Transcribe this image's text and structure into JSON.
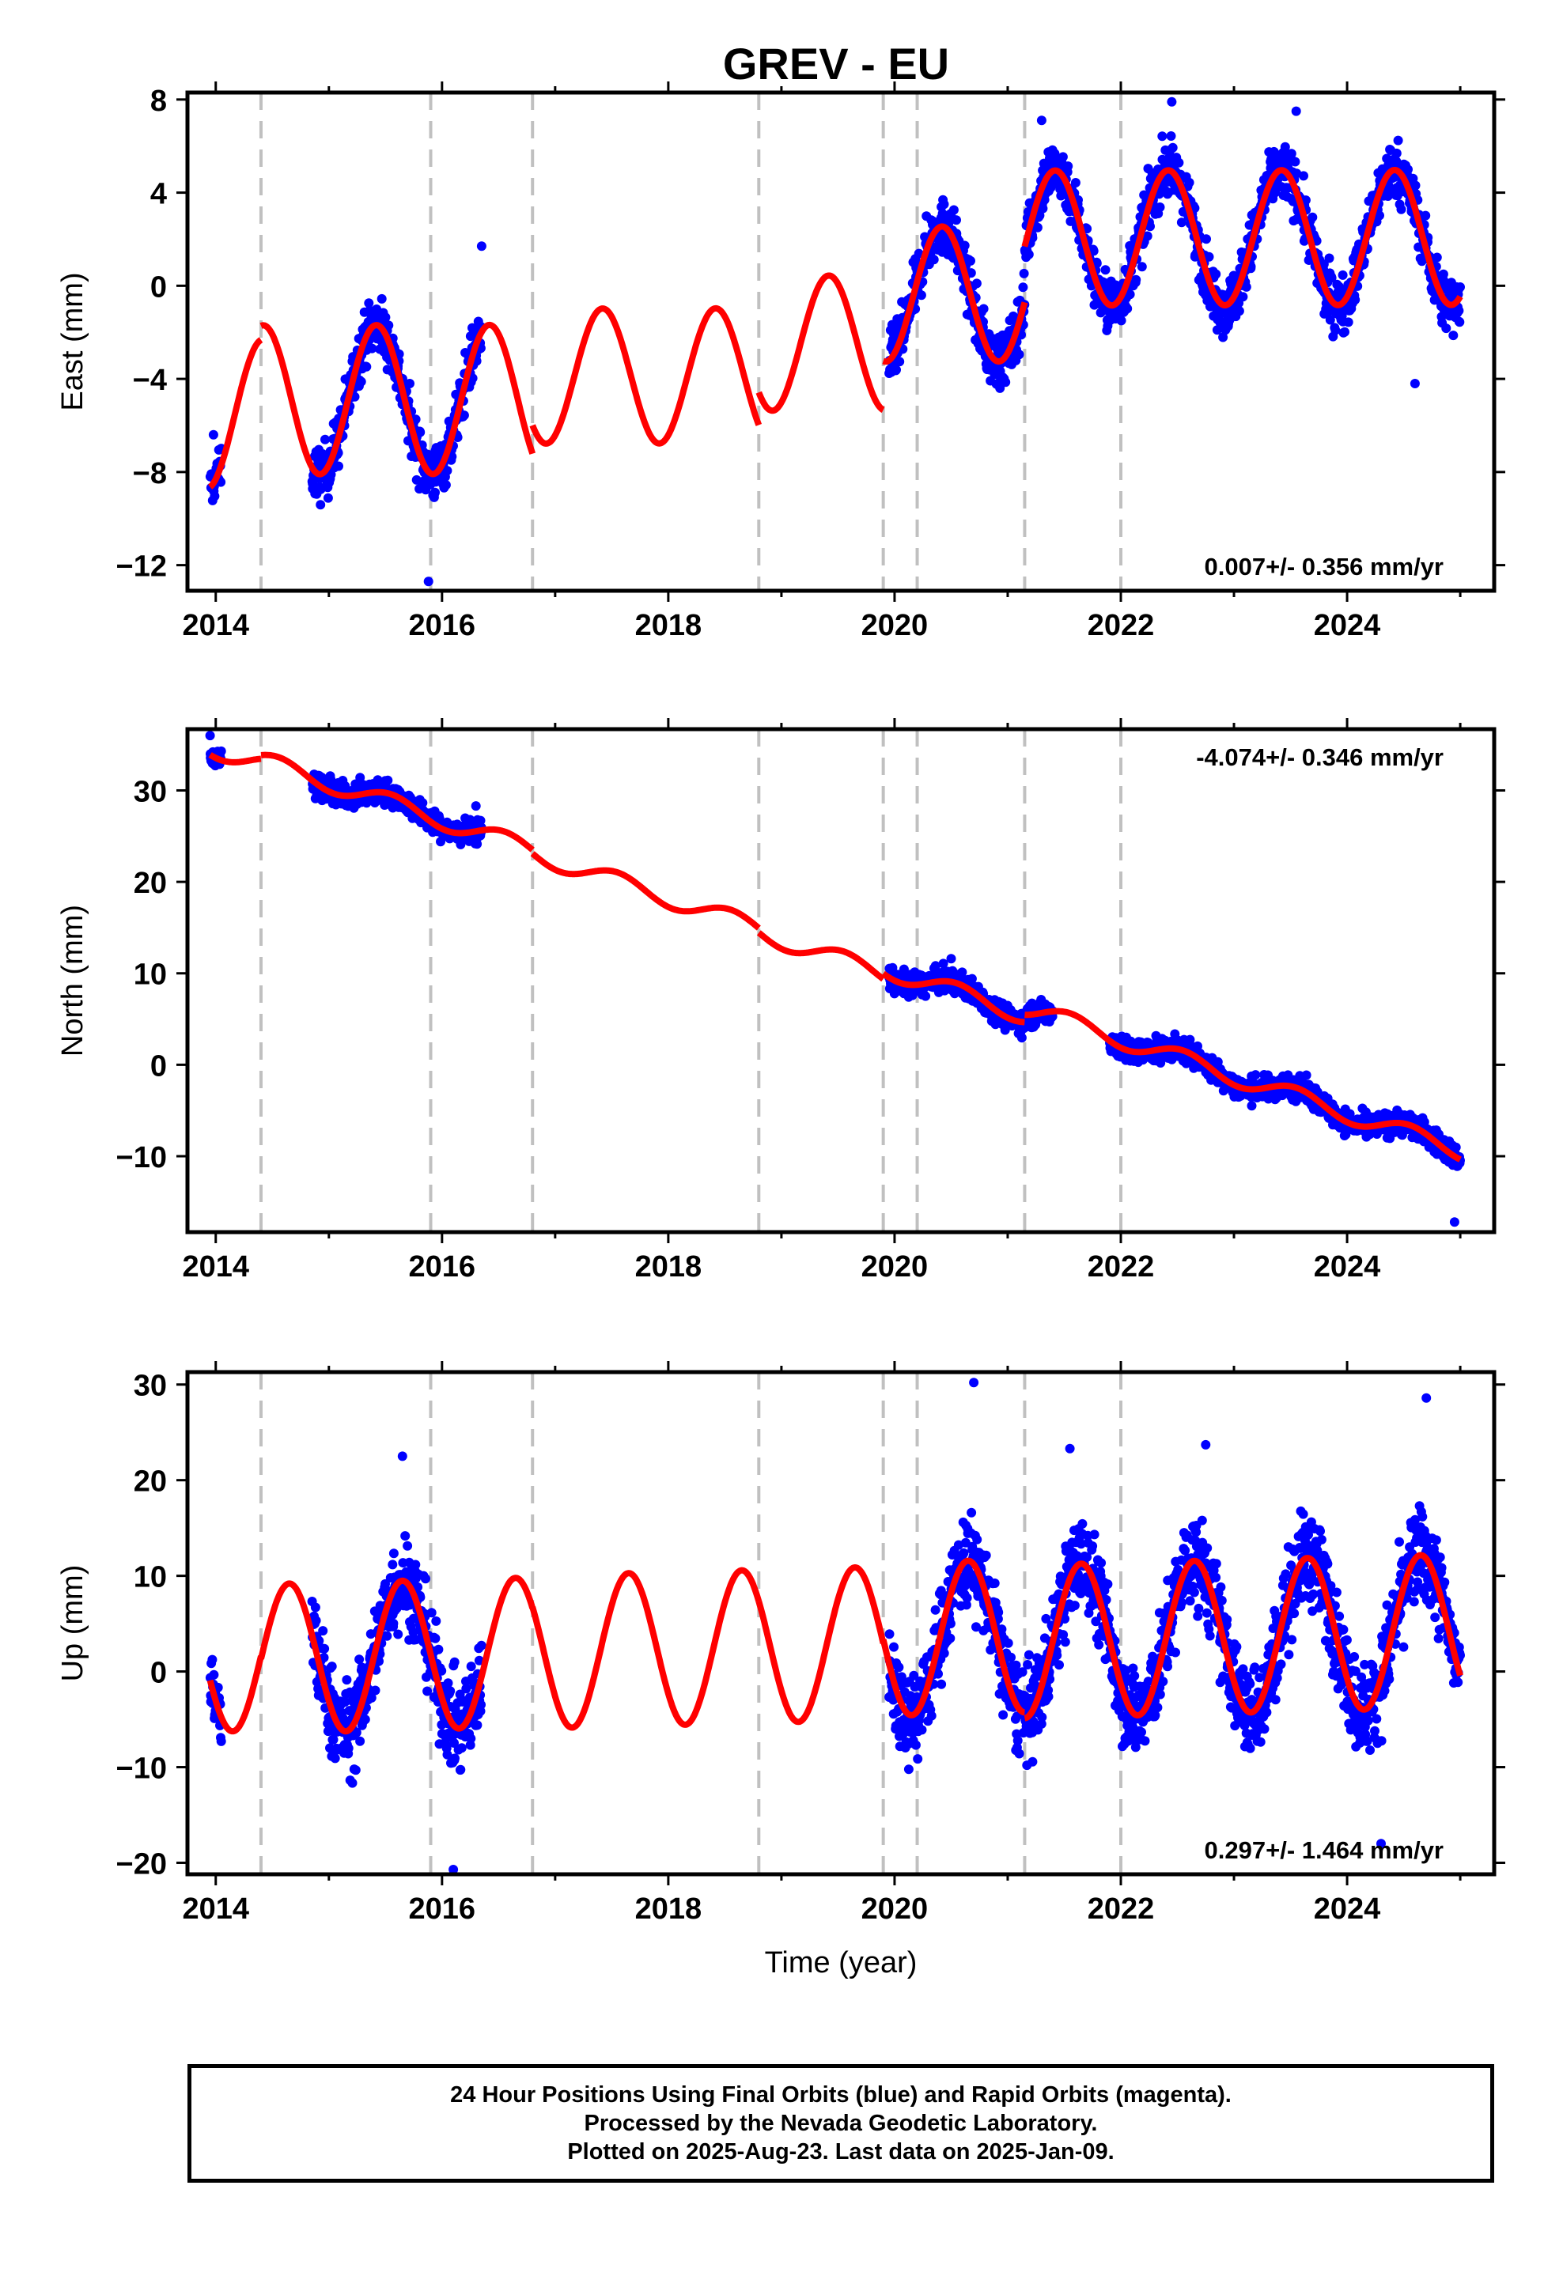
{
  "title": "GREV - EU",
  "colors": {
    "data_points": "#0000ff",
    "model_curve": "#ff0000",
    "event_lines": "#c0c0c0"
  },
  "footer": {
    "line1": "24 Hour Positions Using Final Orbits (blue) and Rapid Orbits (magenta).",
    "line2": "Processed by the Nevada Geodetic Laboratory.",
    "line3": "Plotted on 2025-Aug-23. Last data on 2025-Jan-09."
  },
  "chart_data": [
    {
      "type": "scatter",
      "component": "east",
      "ylabel": "East (mm)",
      "xlabel": "",
      "rate_text": "0.007+/- 0.356 mm/yr",
      "rate_placement": "bottom-right",
      "xlim": [
        2013.75,
        2025.3
      ],
      "ylim": [
        -13.1,
        8.3
      ],
      "xticks": [
        2014,
        2016,
        2018,
        2020,
        2022,
        2024
      ],
      "yticks": [
        -12,
        -8,
        -4,
        0,
        4,
        8
      ],
      "ytick_labels": [
        "−12",
        "−8",
        "−4",
        "0",
        "4",
        "8"
      ],
      "event_lines_x": [
        2014.4,
        2015.9,
        2016.8,
        2018.8,
        2019.9,
        2020.2,
        2021.15,
        2022.0
      ],
      "model_segments": [
        {
          "x0": 2013.95,
          "x1": 2014.4,
          "offset": -5.5,
          "trend": 0.007,
          "annual_amp": 3.2,
          "annual_peak": 2015.42
        },
        {
          "x0": 2014.4,
          "x1": 2016.8,
          "offset": -4.9,
          "trend": 0.007,
          "annual_amp": 3.2,
          "annual_peak": 2015.42
        },
        {
          "x0": 2016.8,
          "x1": 2018.8,
          "offset": -3.9,
          "trend": 0.007,
          "annual_amp": 2.9,
          "annual_peak": 2015.42
        },
        {
          "x0": 2018.8,
          "x1": 2019.9,
          "offset": -2.5,
          "trend": 0.007,
          "annual_amp": 2.9,
          "annual_peak": 2015.42
        },
        {
          "x0": 2019.9,
          "x1": 2021.15,
          "offset": -0.4,
          "trend": 0.007,
          "annual_amp": 2.9,
          "annual_peak": 2015.42
        },
        {
          "x0": 2021.15,
          "x1": 2025.0,
          "offset": 2.0,
          "trend": 0.007,
          "annual_amp": 2.9,
          "annual_peak": 2015.42
        }
      ],
      "data_spans": [
        {
          "x0": 2013.95,
          "x1": 2014.05,
          "noise": 0.7
        },
        {
          "x0": 2014.85,
          "x1": 2016.35,
          "noise": 1.0
        },
        {
          "x0": 2019.95,
          "x1": 2025.0,
          "noise": 1.0
        }
      ],
      "sample_points": [
        [
          2013.98,
          -6.4
        ],
        [
          2015.88,
          -12.7
        ],
        [
          2016.35,
          1.7
        ],
        [
          2021.3,
          7.1
        ],
        [
          2022.45,
          7.9
        ],
        [
          2023.55,
          7.5
        ],
        [
          2024.6,
          -4.2
        ]
      ]
    },
    {
      "type": "scatter",
      "component": "north",
      "ylabel": "North (mm)",
      "xlabel": "",
      "rate_text": "-4.074+/- 0.346 mm/yr",
      "rate_placement": "top-right",
      "xlim": [
        2013.75,
        2025.3
      ],
      "ylim": [
        -18.3,
        36.7
      ],
      "xticks": [
        2014,
        2016,
        2018,
        2020,
        2022,
        2024
      ],
      "yticks": [
        -10,
        0,
        10,
        20,
        30
      ],
      "ytick_labels": [
        "−10",
        "0",
        "10",
        "20",
        "30"
      ],
      "event_lines_x": [
        2014.4,
        2015.9,
        2016.8,
        2018.8,
        2019.9,
        2020.2,
        2021.15,
        2022.0
      ],
      "model_segments": [
        {
          "x0": 2013.95,
          "x1": 2014.4,
          "offset": 34.5,
          "trend": -4.074,
          "annual_amp": 1.0,
          "annual_peak": 2015.55
        },
        {
          "x0": 2014.4,
          "x1": 2016.8,
          "offset": 34.9,
          "trend": -4.074,
          "annual_amp": 1.0,
          "annual_peak": 2015.55
        },
        {
          "x0": 2016.8,
          "x1": 2018.8,
          "offset": 34.5,
          "trend": -4.074,
          "annual_amp": 1.0,
          "annual_peak": 2015.55
        },
        {
          "x0": 2018.8,
          "x1": 2019.9,
          "offset": 34.0,
          "trend": -4.074,
          "annual_amp": 1.0,
          "annual_peak": 2015.55
        },
        {
          "x0": 2019.9,
          "x1": 2021.15,
          "offset": 34.6,
          "trend": -4.074,
          "annual_amp": 1.0,
          "annual_peak": 2015.55
        },
        {
          "x0": 2021.15,
          "x1": 2025.0,
          "offset": 35.4,
          "trend": -4.074,
          "annual_amp": 1.0,
          "annual_peak": 2015.55
        }
      ],
      "data_spans": [
        {
          "x0": 2013.95,
          "x1": 2014.05,
          "noise": 0.9
        },
        {
          "x0": 2014.85,
          "x1": 2016.35,
          "noise": 1.1
        },
        {
          "x0": 2019.95,
          "x1": 2021.4,
          "noise": 1.1
        },
        {
          "x0": 2021.9,
          "x1": 2025.0,
          "noise": 1.1
        }
      ],
      "sample_points": [
        [
          2013.95,
          36.0
        ],
        [
          2016.3,
          28.3
        ],
        [
          2020.5,
          11.6
        ],
        [
          2024.95,
          -17.2
        ]
      ]
    },
    {
      "type": "scatter",
      "component": "up",
      "ylabel": "Up (mm)",
      "xlabel": "Time (year)",
      "rate_text": "0.297+/- 1.464 mm/yr",
      "rate_placement": "bottom-right",
      "xlim": [
        2013.75,
        2025.3
      ],
      "ylim": [
        -21.2,
        31.3
      ],
      "xticks": [
        2014,
        2016,
        2018,
        2020,
        2022,
        2024
      ],
      "yticks": [
        -20,
        -10,
        0,
        10,
        20,
        30
      ],
      "ytick_labels": [
        "−20",
        "−10",
        "0",
        "10",
        "20",
        "30"
      ],
      "event_lines_x": [
        2014.4,
        2015.9,
        2016.8,
        2018.8,
        2019.9,
        2020.2,
        2021.15,
        2022.0
      ],
      "model_segments": [
        {
          "x0": 2013.95,
          "x1": 2014.4,
          "offset": 1.5,
          "trend": 0.297,
          "annual_amp": 7.8,
          "annual_peak": 2015.65
        },
        {
          "x0": 2014.4,
          "x1": 2016.8,
          "offset": 1.2,
          "trend": 0.297,
          "annual_amp": 7.8,
          "annual_peak": 2015.65
        },
        {
          "x0": 2016.8,
          "x1": 2018.8,
          "offset": 1.2,
          "trend": 0.297,
          "annual_amp": 8.0,
          "annual_peak": 2015.65
        },
        {
          "x0": 2018.8,
          "x1": 2019.9,
          "offset": 1.2,
          "trend": 0.297,
          "annual_amp": 8.0,
          "annual_peak": 2015.65
        },
        {
          "x0": 2019.9,
          "x1": 2021.15,
          "offset": 1.6,
          "trend": 0.297,
          "annual_amp": 8.0,
          "annual_peak": 2015.65
        },
        {
          "x0": 2021.15,
          "x1": 2025.0,
          "offset": 1.0,
          "trend": 0.297,
          "annual_amp": 8.0,
          "annual_peak": 2015.65
        }
      ],
      "data_spans": [
        {
          "x0": 2013.95,
          "x1": 2014.05,
          "noise": 3.5
        },
        {
          "x0": 2014.85,
          "x1": 2016.35,
          "noise": 4.0
        },
        {
          "x0": 2019.95,
          "x1": 2025.0,
          "noise": 4.0
        }
      ],
      "sample_points": [
        [
          2015.65,
          22.5
        ],
        [
          2016.1,
          -20.7
        ],
        [
          2020.7,
          30.2
        ],
        [
          2021.55,
          23.3
        ],
        [
          2022.75,
          23.7
        ],
        [
          2024.3,
          -18.0
        ],
        [
          2024.7,
          28.6
        ]
      ]
    }
  ]
}
